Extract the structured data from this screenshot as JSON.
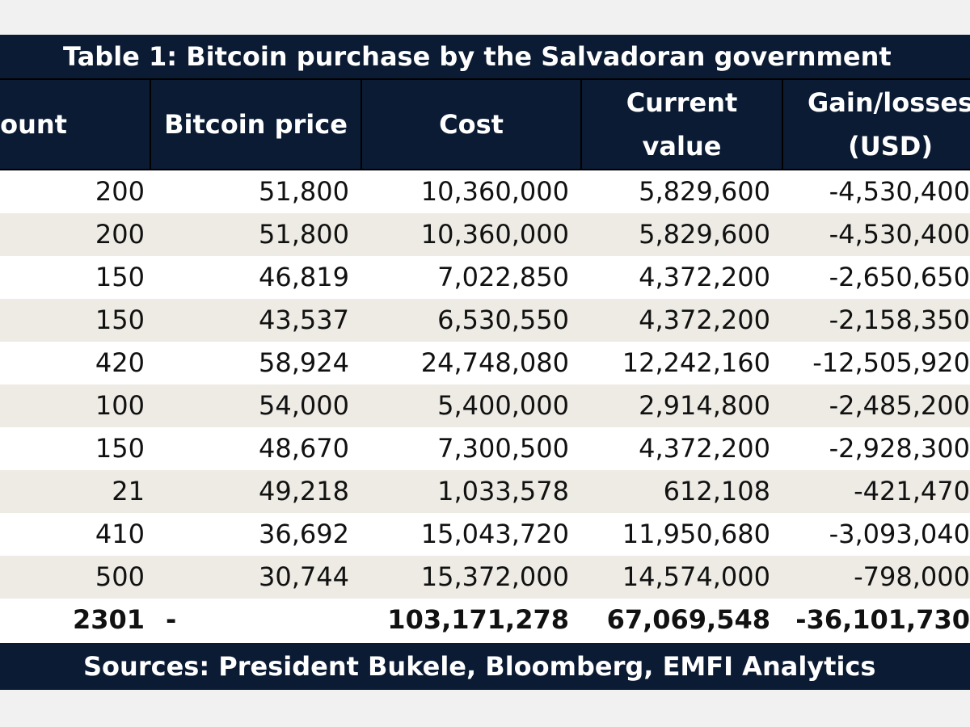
{
  "table": {
    "title": "Table 1: Bitcoin purchase by the Salvadoran government",
    "headers": [
      "Amount",
      "Bitcoin price",
      "Cost",
      "Current\nvalue",
      "Gain/losses\n(USD)"
    ],
    "rows": [
      [
        "200",
        "51,800",
        "10,360,000",
        "5,829,600",
        "-4,530,400"
      ],
      [
        "200",
        "51,800",
        "10,360,000",
        "5,829,600",
        "-4,530,400"
      ],
      [
        "150",
        "46,819",
        "7,022,850",
        "4,372,200",
        "-2,650,650"
      ],
      [
        "150",
        "43,537",
        "6,530,550",
        "4,372,200",
        "-2,158,350"
      ],
      [
        "420",
        "58,924",
        "24,748,080",
        "12,242,160",
        "-12,505,920"
      ],
      [
        "100",
        "54,000",
        "5,400,000",
        "2,914,800",
        "-2,485,200"
      ],
      [
        "150",
        "48,670",
        "7,300,500",
        "4,372,200",
        "-2,928,300"
      ],
      [
        "21",
        "49,218",
        "1,033,578",
        "612,108",
        "-421,470"
      ],
      [
        "410",
        "36,692",
        "15,043,720",
        "11,950,680",
        "-3,093,040"
      ],
      [
        "500",
        "30,744",
        "15,372,000",
        "14,574,000",
        "-798,000"
      ]
    ],
    "total": [
      "2301",
      "-",
      "103,171,278",
      "67,069,548",
      "-36,101,730"
    ],
    "source": "Sources: President Bukele, Bloomberg, EMFI Analytics"
  },
  "colors": {
    "header_bg": "#0b1b33",
    "shaded_row": "#edebe4",
    "page_bg": "#f1f1f1"
  }
}
